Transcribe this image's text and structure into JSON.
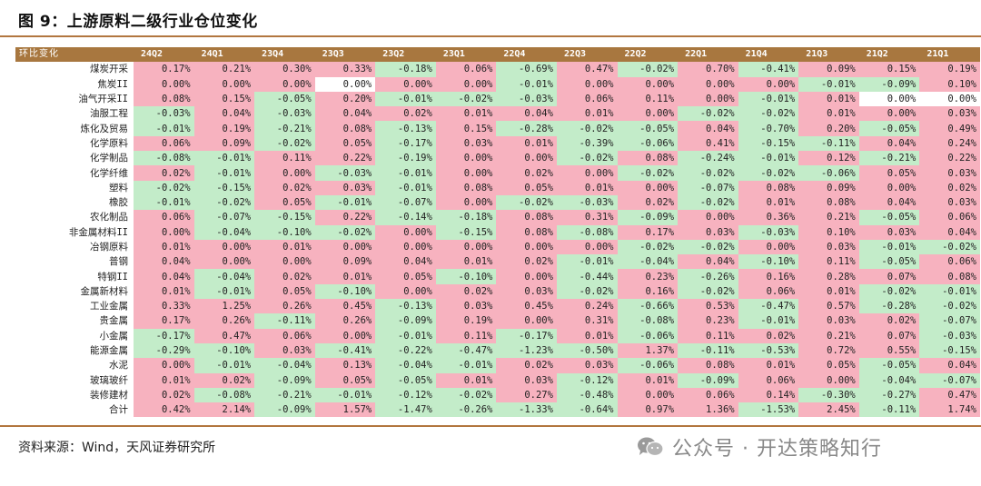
{
  "title": "图 9：上游原料二级行业仓位变化",
  "header": {
    "corner": "环比变化",
    "columns": [
      "24Q2",
      "24Q1",
      "23Q4",
      "23Q3",
      "23Q2",
      "23Q1",
      "22Q4",
      "22Q3",
      "22Q2",
      "22Q1",
      "21Q4",
      "21Q3",
      "21Q2",
      "21Q1"
    ]
  },
  "rows": [
    {
      "label": "煤炭开采",
      "values": [
        "0.17%",
        "0.21%",
        "0.30%",
        "0.33%",
        "-0.18%",
        "0.06%",
        "-0.69%",
        "0.47%",
        "-0.02%",
        "0.70%",
        "-0.41%",
        "0.09%",
        "0.15%",
        "0.19%"
      ]
    },
    {
      "label": "焦炭II",
      "values": [
        "0.00%",
        "0.00%",
        "0.00%",
        "0.00%",
        "0.00%",
        "0.00%",
        "-0.01%",
        "0.00%",
        "0.00%",
        "0.00%",
        "0.00%",
        "-0.01%",
        "-0.09%",
        "0.10%"
      ]
    },
    {
      "label": "油气开采II",
      "values": [
        "0.08%",
        "0.15%",
        "-0.05%",
        "0.20%",
        "-0.01%",
        "-0.02%",
        "-0.03%",
        "0.06%",
        "0.11%",
        "0.00%",
        "-0.01%",
        "0.01%",
        "0.00%",
        "0.00%"
      ]
    },
    {
      "label": "油服工程",
      "values": [
        "-0.03%",
        "0.04%",
        "-0.03%",
        "0.04%",
        "0.02%",
        "0.01%",
        "0.04%",
        "0.01%",
        "0.00%",
        "-0.02%",
        "-0.02%",
        "0.01%",
        "0.00%",
        "0.03%"
      ]
    },
    {
      "label": "炼化及贸易",
      "values": [
        "-0.01%",
        "0.19%",
        "-0.21%",
        "0.08%",
        "-0.13%",
        "0.15%",
        "-0.28%",
        "-0.02%",
        "-0.05%",
        "0.04%",
        "-0.70%",
        "0.20%",
        "-0.05%",
        "0.49%"
      ]
    },
    {
      "label": "化学原料",
      "values": [
        "0.06%",
        "0.09%",
        "-0.02%",
        "0.05%",
        "-0.17%",
        "0.03%",
        "0.01%",
        "-0.39%",
        "-0.06%",
        "0.41%",
        "-0.15%",
        "-0.11%",
        "0.04%",
        "0.24%"
      ]
    },
    {
      "label": "化学制品",
      "values": [
        "-0.08%",
        "-0.01%",
        "0.11%",
        "0.22%",
        "-0.19%",
        "0.00%",
        "0.00%",
        "-0.02%",
        "0.08%",
        "-0.24%",
        "-0.01%",
        "0.12%",
        "-0.21%",
        "0.22%"
      ]
    },
    {
      "label": "化学纤维",
      "values": [
        "0.02%",
        "-0.01%",
        "0.00%",
        "-0.03%",
        "-0.01%",
        "0.00%",
        "0.02%",
        "0.00%",
        "-0.02%",
        "-0.02%",
        "-0.02%",
        "-0.06%",
        "0.05%",
        "0.03%"
      ]
    },
    {
      "label": "塑料",
      "values": [
        "-0.02%",
        "-0.15%",
        "0.02%",
        "0.03%",
        "-0.01%",
        "0.08%",
        "0.05%",
        "0.01%",
        "0.00%",
        "-0.07%",
        "0.08%",
        "0.09%",
        "0.00%",
        "0.02%"
      ]
    },
    {
      "label": "橡胶",
      "values": [
        "-0.01%",
        "-0.02%",
        "0.05%",
        "-0.01%",
        "-0.07%",
        "0.00%",
        "-0.02%",
        "-0.03%",
        "0.02%",
        "-0.02%",
        "0.01%",
        "0.08%",
        "0.04%",
        "0.03%"
      ]
    },
    {
      "label": "农化制品",
      "values": [
        "0.06%",
        "-0.07%",
        "-0.15%",
        "0.22%",
        "-0.14%",
        "-0.18%",
        "0.08%",
        "0.31%",
        "-0.09%",
        "0.00%",
        "0.36%",
        "0.21%",
        "-0.05%",
        "0.06%"
      ]
    },
    {
      "label": "非金属材料II",
      "values": [
        "0.00%",
        "-0.04%",
        "-0.10%",
        "-0.02%",
        "0.00%",
        "-0.15%",
        "0.08%",
        "-0.08%",
        "0.17%",
        "0.03%",
        "-0.03%",
        "0.10%",
        "0.03%",
        "0.04%"
      ]
    },
    {
      "label": "冶钢原料",
      "values": [
        "0.01%",
        "0.00%",
        "0.01%",
        "0.00%",
        "0.00%",
        "0.00%",
        "0.00%",
        "0.00%",
        "-0.02%",
        "-0.02%",
        "0.00%",
        "0.03%",
        "-0.01%",
        "-0.02%"
      ]
    },
    {
      "label": "普钢",
      "values": [
        "0.04%",
        "0.00%",
        "0.00%",
        "0.09%",
        "0.04%",
        "0.01%",
        "0.02%",
        "-0.01%",
        "-0.04%",
        "0.04%",
        "-0.10%",
        "0.11%",
        "-0.05%",
        "0.06%"
      ]
    },
    {
      "label": "特钢II",
      "values": [
        "0.04%",
        "-0.04%",
        "0.02%",
        "0.01%",
        "0.05%",
        "-0.10%",
        "0.00%",
        "-0.44%",
        "0.23%",
        "-0.26%",
        "0.16%",
        "0.28%",
        "0.07%",
        "0.08%"
      ]
    },
    {
      "label": "金属新材料",
      "values": [
        "0.01%",
        "-0.01%",
        "0.05%",
        "-0.10%",
        "0.00%",
        "0.02%",
        "0.03%",
        "-0.02%",
        "0.16%",
        "-0.02%",
        "0.06%",
        "0.01%",
        "-0.02%",
        "-0.01%"
      ]
    },
    {
      "label": "工业金属",
      "values": [
        "0.33%",
        "1.25%",
        "0.26%",
        "0.45%",
        "-0.13%",
        "0.03%",
        "0.45%",
        "0.24%",
        "-0.66%",
        "0.53%",
        "-0.47%",
        "0.57%",
        "-0.28%",
        "-0.02%"
      ]
    },
    {
      "label": "贵金属",
      "values": [
        "0.17%",
        "0.26%",
        "-0.11%",
        "0.26%",
        "-0.09%",
        "0.19%",
        "0.00%",
        "0.31%",
        "-0.08%",
        "0.23%",
        "-0.01%",
        "0.03%",
        "0.02%",
        "-0.07%"
      ]
    },
    {
      "label": "小金属",
      "values": [
        "-0.17%",
        "0.47%",
        "0.06%",
        "0.00%",
        "-0.01%",
        "0.11%",
        "-0.17%",
        "0.01%",
        "-0.06%",
        "0.11%",
        "0.02%",
        "0.21%",
        "0.07%",
        "-0.03%"
      ]
    },
    {
      "label": "能源金属",
      "values": [
        "-0.29%",
        "-0.10%",
        "0.03%",
        "-0.41%",
        "-0.22%",
        "-0.47%",
        "-1.23%",
        "-0.50%",
        "1.37%",
        "-0.11%",
        "-0.53%",
        "0.72%",
        "0.55%",
        "-0.15%"
      ]
    },
    {
      "label": "水泥",
      "values": [
        "0.00%",
        "-0.01%",
        "-0.04%",
        "0.13%",
        "-0.04%",
        "-0.01%",
        "0.02%",
        "0.03%",
        "-0.06%",
        "0.08%",
        "0.01%",
        "0.05%",
        "-0.05%",
        "0.04%"
      ]
    },
    {
      "label": "玻璃玻纤",
      "values": [
        "0.01%",
        "0.02%",
        "-0.09%",
        "0.05%",
        "-0.05%",
        "0.01%",
        "0.03%",
        "-0.12%",
        "0.01%",
        "-0.09%",
        "0.06%",
        "0.00%",
        "-0.04%",
        "-0.07%"
      ]
    },
    {
      "label": "装修建材",
      "values": [
        "0.02%",
        "-0.08%",
        "-0.21%",
        "-0.01%",
        "-0.12%",
        "-0.02%",
        "0.27%",
        "-0.48%",
        "0.00%",
        "0.06%",
        "0.14%",
        "-0.30%",
        "-0.27%",
        "0.47%"
      ]
    },
    {
      "label": "合计",
      "values": [
        "0.42%",
        "2.14%",
        "-0.09%",
        "1.57%",
        "-1.47%",
        "-0.26%",
        "-1.33%",
        "-0.64%",
        "0.97%",
        "1.36%",
        "-1.53%",
        "2.45%",
        "-0.11%",
        "1.74%"
      ]
    }
  ],
  "white_cells": [
    [
      1,
      3
    ],
    [
      2,
      12
    ],
    [
      2,
      13
    ]
  ],
  "source": "资料来源：Wind，天风证券研究所",
  "watermark": "公众号 · 开达策略知行",
  "colors": {
    "accent": "#a8773f",
    "positive": "#f7b2bf",
    "negative": "#c3ecc9",
    "zero": "#ffffff"
  },
  "icons": {
    "watermark_icon": "wechat-icon"
  }
}
